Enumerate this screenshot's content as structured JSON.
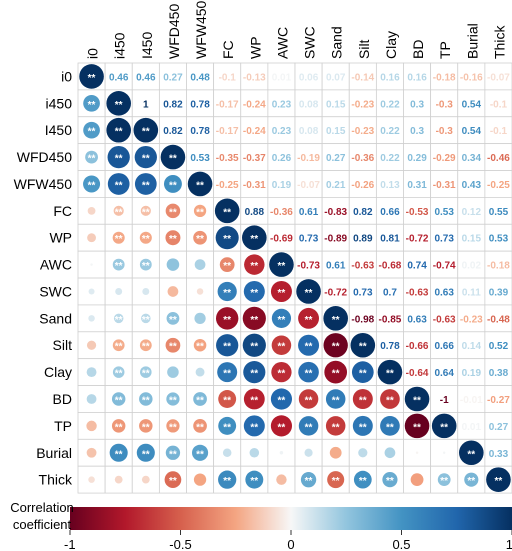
{
  "chart_data": {
    "type": "heatmap",
    "title": "",
    "variables": [
      "i0",
      "i450",
      "I450",
      "WFD450",
      "WFW450",
      "FC",
      "WP",
      "AWC",
      "SWC",
      "Sand",
      "Silt",
      "Clay",
      "BD",
      "TP",
      "Burial",
      "Thick"
    ],
    "upper_matrix": [
      [
        null,
        0.46,
        0.46,
        0.27,
        0.48,
        -0.1,
        -0.13,
        0.01,
        0.06,
        0.07,
        -0.14,
        0.16,
        0.16,
        -0.18,
        -0.16,
        -0.07
      ],
      [
        null,
        null,
        1,
        0.82,
        0.78,
        -0.17,
        -0.24,
        0.23,
        0.08,
        0.15,
        -0.23,
        0.22,
        0.3,
        -0.3,
        0.54,
        -0.1
      ],
      [
        null,
        null,
        null,
        0.82,
        0.78,
        -0.17,
        -0.24,
        0.23,
        0.08,
        0.15,
        -0.23,
        0.22,
        0.3,
        -0.3,
        0.54,
        -0.1
      ],
      [
        null,
        null,
        null,
        null,
        0.53,
        -0.35,
        -0.37,
        0.26,
        -0.19,
        0.27,
        -0.36,
        0.22,
        0.29,
        -0.29,
        0.34,
        -0.46
      ],
      [
        null,
        null,
        null,
        null,
        null,
        -0.25,
        -0.31,
        0.19,
        -0.07,
        0.21,
        -0.26,
        0.13,
        0.31,
        -0.31,
        0.43,
        -0.25
      ],
      [
        null,
        null,
        null,
        null,
        null,
        null,
        0.88,
        -0.36,
        0.61,
        -0.83,
        0.82,
        0.66,
        -0.53,
        0.53,
        0.12,
        0.55
      ],
      [
        null,
        null,
        null,
        null,
        null,
        null,
        null,
        -0.69,
        0.73,
        -0.89,
        0.89,
        0.81,
        -0.72,
        0.73,
        0.15,
        0.53
      ],
      [
        null,
        null,
        null,
        null,
        null,
        null,
        null,
        null,
        -0.73,
        0.61,
        -0.63,
        -0.68,
        0.74,
        -0.74,
        0.02,
        -0.18
      ],
      [
        null,
        null,
        null,
        null,
        null,
        null,
        null,
        null,
        null,
        -0.72,
        0.73,
        0.7,
        -0.63,
        0.63,
        0.11,
        0.39
      ],
      [
        null,
        null,
        null,
        null,
        null,
        null,
        null,
        null,
        null,
        null,
        -0.98,
        -0.85,
        0.63,
        -0.63,
        -0.23,
        -0.48
      ],
      [
        null,
        null,
        null,
        null,
        null,
        null,
        null,
        null,
        null,
        null,
        null,
        0.78,
        -0.66,
        0.66,
        0.14,
        0.52
      ],
      [
        null,
        null,
        null,
        null,
        null,
        null,
        null,
        null,
        null,
        null,
        null,
        null,
        -0.64,
        0.64,
        0.19,
        0.38
      ],
      [
        null,
        null,
        null,
        null,
        null,
        null,
        null,
        null,
        null,
        null,
        null,
        null,
        null,
        -1,
        -0.01,
        -0.27
      ],
      [
        null,
        null,
        null,
        null,
        null,
        null,
        null,
        null,
        null,
        null,
        null,
        null,
        null,
        null,
        0.01,
        0.27
      ],
      [
        null,
        null,
        null,
        null,
        null,
        null,
        null,
        null,
        null,
        null,
        null,
        null,
        null,
        null,
        null,
        0.33
      ],
      [
        null,
        null,
        null,
        null,
        null,
        null,
        null,
        null,
        null,
        null,
        null,
        null,
        null,
        null,
        null,
        null
      ]
    ],
    "significance_mark": "**",
    "significant_pairs": [
      [
        0,
        1
      ],
      [
        0,
        2
      ],
      [
        0,
        3
      ],
      [
        0,
        4
      ],
      [
        1,
        2
      ],
      [
        1,
        3
      ],
      [
        1,
        4
      ],
      [
        2,
        3
      ],
      [
        2,
        4
      ],
      [
        3,
        4
      ],
      [
        1,
        5
      ],
      [
        2,
        5
      ],
      [
        3,
        5
      ],
      [
        4,
        5
      ],
      [
        1,
        6
      ],
      [
        2,
        6
      ],
      [
        3,
        6
      ],
      [
        4,
        6
      ],
      [
        1,
        7
      ],
      [
        2,
        7
      ],
      [
        1,
        9
      ],
      [
        2,
        9
      ],
      [
        3,
        9
      ],
      [
        1,
        10
      ],
      [
        2,
        10
      ],
      [
        3,
        10
      ],
      [
        4,
        10
      ],
      [
        1,
        11
      ],
      [
        2,
        11
      ],
      [
        1,
        12
      ],
      [
        2,
        12
      ],
      [
        3,
        12
      ],
      [
        4,
        12
      ],
      [
        1,
        13
      ],
      [
        2,
        13
      ],
      [
        3,
        13
      ],
      [
        4,
        13
      ],
      [
        1,
        14
      ],
      [
        2,
        14
      ],
      [
        3,
        14
      ],
      [
        4,
        14
      ],
      [
        3,
        15
      ],
      [
        5,
        6
      ],
      [
        5,
        7
      ],
      [
        5,
        8
      ],
      [
        5,
        9
      ],
      [
        5,
        10
      ],
      [
        5,
        11
      ],
      [
        5,
        12
      ],
      [
        5,
        13
      ],
      [
        5,
        15
      ],
      [
        6,
        7
      ],
      [
        6,
        8
      ],
      [
        6,
        9
      ],
      [
        6,
        10
      ],
      [
        6,
        11
      ],
      [
        6,
        12
      ],
      [
        6,
        13
      ],
      [
        6,
        15
      ],
      [
        7,
        8
      ],
      [
        7,
        9
      ],
      [
        7,
        10
      ],
      [
        7,
        11
      ],
      [
        7,
        12
      ],
      [
        7,
        13
      ],
      [
        8,
        9
      ],
      [
        8,
        10
      ],
      [
        8,
        11
      ],
      [
        8,
        12
      ],
      [
        8,
        13
      ],
      [
        8,
        15
      ],
      [
        9,
        10
      ],
      [
        9,
        11
      ],
      [
        9,
        12
      ],
      [
        9,
        13
      ],
      [
        9,
        15
      ],
      [
        10,
        11
      ],
      [
        10,
        12
      ],
      [
        10,
        13
      ],
      [
        10,
        15
      ],
      [
        11,
        12
      ],
      [
        11,
        13
      ],
      [
        11,
        15
      ],
      [
        12,
        13
      ],
      [
        13,
        15
      ],
      [
        14,
        15
      ]
    ],
    "colorbar": {
      "label": [
        "Correlation",
        "coefficient"
      ],
      "range": [
        -1,
        1
      ],
      "ticks": [
        "-1",
        "-0.5",
        "0",
        "0.5",
        "1"
      ],
      "tick_values": [
        -1,
        -0.5,
        0,
        0.5,
        1
      ]
    },
    "colors": {
      "negative_end": "#67001f",
      "negative_mid": "#d6604d",
      "neutral": "#f7f7f7",
      "positive_mid": "#4393c3",
      "positive_end": "#053061",
      "grid": "#d0d0d0"
    }
  }
}
